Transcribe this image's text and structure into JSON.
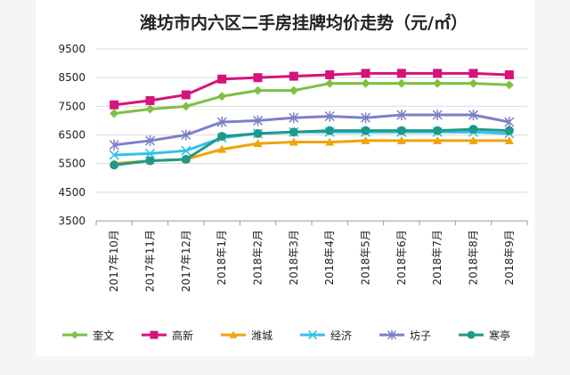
{
  "chart_data": {
    "type": "line",
    "title": "潍坊市内六区二手房挂牌均价走势（元/㎡）",
    "categories": [
      "2017年10月",
      "2017年11月",
      "2017年12月",
      "2018年1月",
      "2018年2月",
      "2018年3月",
      "2018年4月",
      "2018年5月",
      "2018年6月",
      "2018年7月",
      "2018年8月",
      "2018年9月"
    ],
    "yticks": [
      3500,
      4500,
      5500,
      6500,
      7500,
      8500,
      9500
    ],
    "ylim": [
      3500,
      9500
    ],
    "grid": true,
    "legend_position": "bottom",
    "series": [
      {
        "name": "奎文",
        "color": "#7dc142",
        "marker": "diamond",
        "values": [
          7250,
          7400,
          7500,
          7850,
          8050,
          8050,
          8300,
          8300,
          8300,
          8300,
          8300,
          8250
        ]
      },
      {
        "name": "高新",
        "color": "#d6137a",
        "marker": "square",
        "values": [
          7550,
          7700,
          7900,
          8450,
          8500,
          8550,
          8600,
          8650,
          8650,
          8650,
          8650,
          8600
        ]
      },
      {
        "name": "潍城",
        "color": "#f0a30a",
        "marker": "triangle",
        "values": [
          5500,
          5600,
          5650,
          6000,
          6200,
          6250,
          6250,
          6300,
          6300,
          6300,
          6300,
          6300
        ]
      },
      {
        "name": "经济",
        "color": "#35c0e8",
        "marker": "x",
        "values": [
          5800,
          5850,
          5950,
          6400,
          6550,
          6600,
          6600,
          6600,
          6600,
          6600,
          6600,
          6550
        ]
      },
      {
        "name": "坊子",
        "color": "#7d80c8",
        "marker": "star",
        "values": [
          6150,
          6300,
          6500,
          6950,
          7000,
          7100,
          7150,
          7100,
          7200,
          7200,
          7200,
          6950
        ]
      },
      {
        "name": "寒亭",
        "color": "#1f9a8a",
        "marker": "circle",
        "values": [
          5450,
          5600,
          5650,
          6450,
          6550,
          6600,
          6650,
          6650,
          6650,
          6650,
          6700,
          6650
        ]
      }
    ]
  }
}
